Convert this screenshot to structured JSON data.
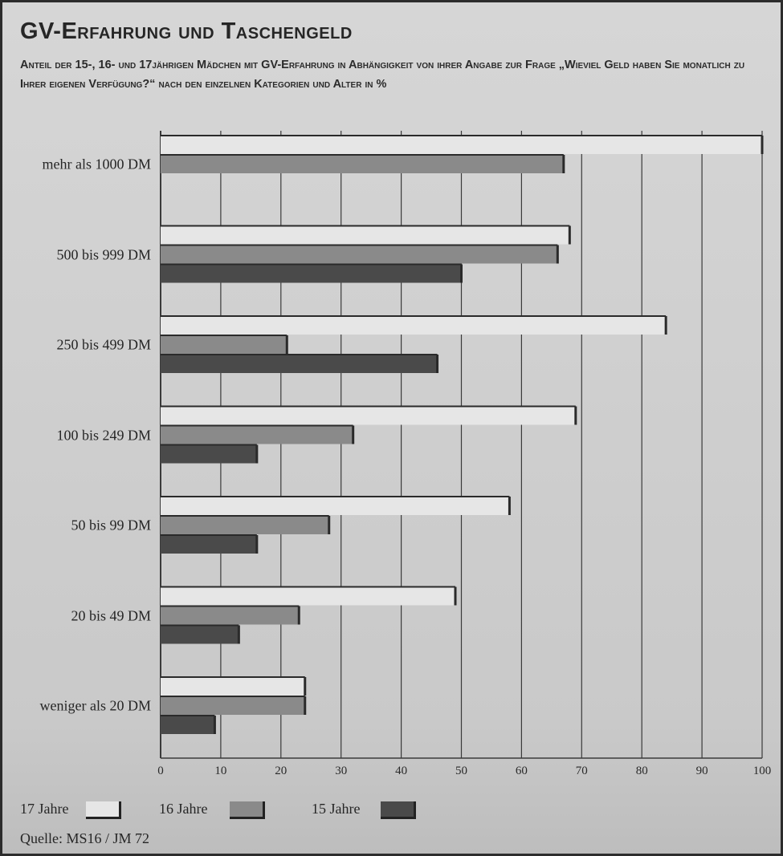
{
  "header": {
    "title": "GV-Erfahrung und Taschengeld",
    "subtitle": "Anteil der 15-, 16- und 17jährigen Mädchen mit GV-Erfahrung in Abhängigkeit von ihrer Angabe zur Frage „Wieviel Geld haben Sie monatlich zu Ihrer eigenen Verfügung?“ nach den einzelnen Kategorien und Alter in %"
  },
  "source": "Quelle: MS16 / JM 72",
  "chart_data": {
    "type": "bar",
    "orientation": "horizontal",
    "title": "GV-Erfahrung und Taschengeld",
    "subtitle": "Anteil der 15-, 16- und 17jährigen Mädchen mit GV-Erfahrung in Abhängigkeit von ihrer Angabe zur Frage „Wieviel Geld haben Sie monatlich zu Ihrer eigenen Verfügung?“ nach den einzelnen Kategorien und Alter in %",
    "categories": [
      "mehr als 1000 DM",
      "500 bis 999 DM",
      "250 bis 499 DM",
      "100 bis 249 DM",
      "50 bis 99 DM",
      "20 bis 49 DM",
      "weniger als 20 DM"
    ],
    "series": [
      {
        "name": "17 Jahre",
        "color": "#e6e6e6",
        "values": [
          100,
          68,
          84,
          69,
          58,
          49,
          24
        ]
      },
      {
        "name": "16 Jahre",
        "color": "#8a8a8a",
        "values": [
          67,
          66,
          21,
          32,
          28,
          23,
          24
        ]
      },
      {
        "name": "15 Jahre",
        "color": "#4a4a4a",
        "values": [
          null,
          50,
          46,
          16,
          16,
          13,
          9
        ]
      }
    ],
    "xlim": [
      0,
      100
    ],
    "xticks": [
      0,
      10,
      20,
      30,
      40,
      50,
      60,
      70,
      80,
      90,
      100
    ],
    "grid": true,
    "legend_position": "bottom-left"
  }
}
